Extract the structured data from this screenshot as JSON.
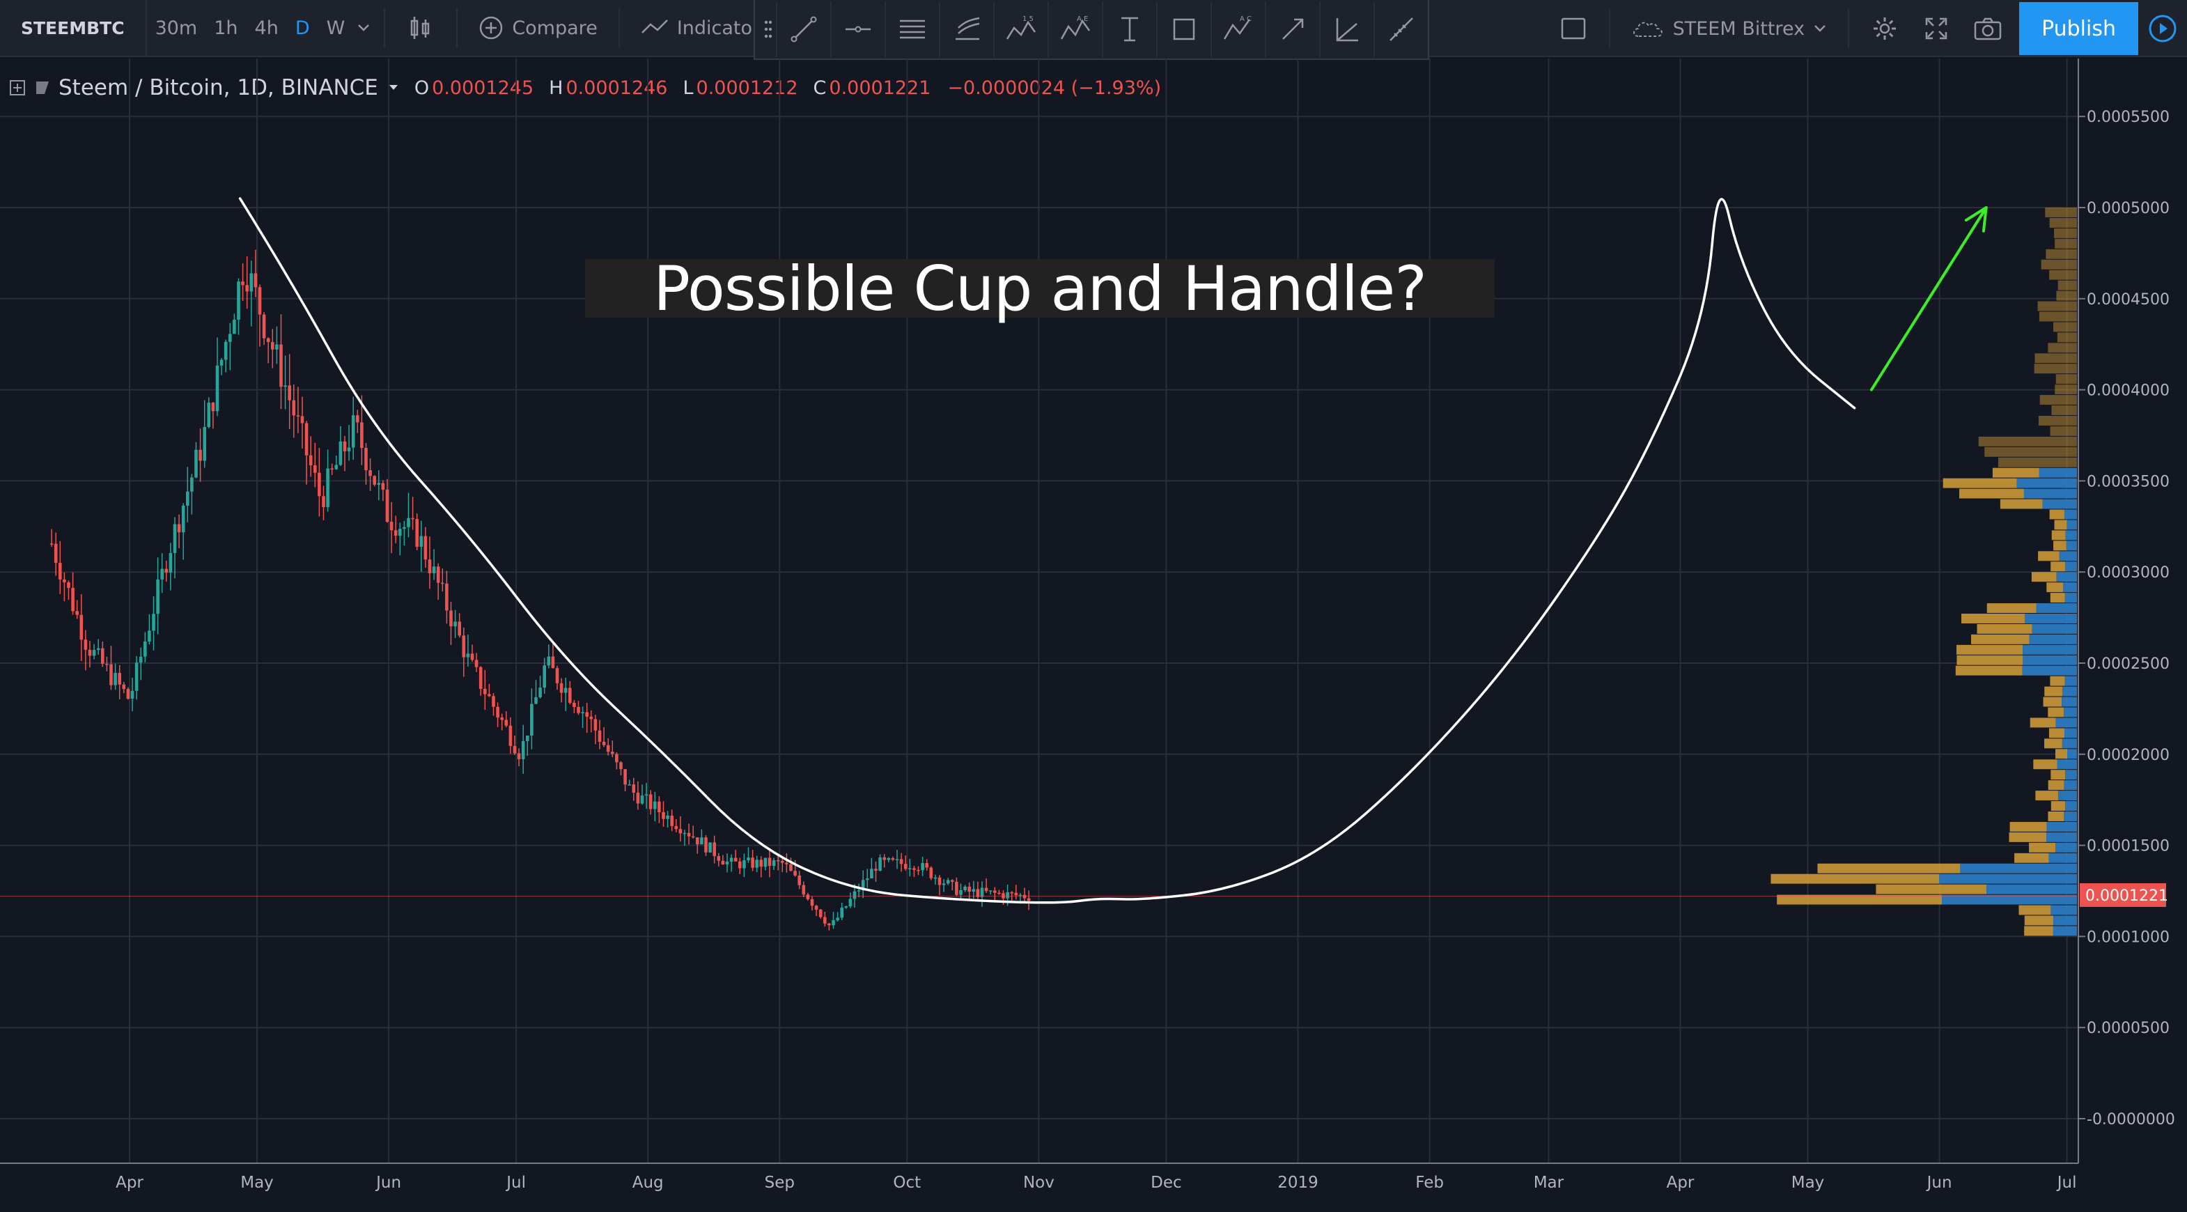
{
  "toolbar": {
    "symbol": "STEEMBTC",
    "intervals": [
      "30m",
      "1h",
      "4h",
      "D",
      "W"
    ],
    "active_interval": "D",
    "compare_label": "Compare",
    "indicators_label": "Indicators",
    "watchlist_label": "STEEM Bittrex",
    "publish_label": "Publish"
  },
  "legend": {
    "title": "Steem / Bitcoin, 1D, BINANCE",
    "o_label": "O",
    "o_value": "0.0001245",
    "h_label": "H",
    "h_value": "0.0001246",
    "l_label": "L",
    "l_value": "0.0001212",
    "c_label": "C",
    "c_value": "0.0001221",
    "change": "−0.0000024 (−1.93%)"
  },
  "annotation_title": "Possible Cup and Handle?",
  "colors": {
    "background": "#131722",
    "up": "#26a69a",
    "down": "#ef5350",
    "vp_up": "#2c7fc9",
    "vp_down": "#d6a037",
    "publish": "#2196f3",
    "arrow": "#3ded29",
    "drawing": "#ffffff"
  },
  "icons": [
    "bar-style-icon",
    "compare-plus-icon",
    "indicators-icon",
    "trendline-icon",
    "horizontal-ray-icon",
    "pitchfork-icon",
    "fib-retracement-icon",
    "xabcd-pattern-icon",
    "elliott-wave-icon",
    "text-icon",
    "rectangle-icon",
    "abcd-pattern-icon",
    "arrow-icon",
    "gann-icon",
    "measure-icon",
    "layout-icon",
    "cloud-icon",
    "gear-icon",
    "fullscreen-icon",
    "camera-icon",
    "play-icon"
  ],
  "chart_data": {
    "type": "candlestick",
    "y_axis": {
      "ticks": [
        "0.0005500",
        "0.0005000",
        "0.0004500",
        "0.0004000",
        "0.0003500",
        "0.0003000",
        "0.0002500",
        "0.0002000",
        "0.0001500",
        "0.0001000",
        "0.0000500",
        "-0.0000000"
      ],
      "current_price_label": "0.0001221",
      "current_price": 0.0001221
    },
    "x_axis": {
      "ticks": [
        "Apr",
        "May",
        "Jun",
        "Jul",
        "Aug",
        "Sep",
        "Oct",
        "Nov",
        "Dec",
        "2019",
        "Feb",
        "Mar",
        "Apr",
        "May",
        "Jun",
        "Jul"
      ]
    },
    "price_path": [
      [
        "2018-03-13",
        0.00032
      ],
      [
        "2018-03-22",
        0.00026
      ],
      [
        "2018-04-01",
        0.00023
      ],
      [
        "2018-04-10",
        0.00031
      ],
      [
        "2018-04-18",
        0.00037
      ],
      [
        "2018-04-28",
        0.00047
      ],
      [
        "2018-05-08",
        0.0004
      ],
      [
        "2018-05-16",
        0.00034
      ],
      [
        "2018-05-24",
        0.00038
      ],
      [
        "2018-06-01",
        0.00033
      ],
      [
        "2018-06-08",
        0.00032
      ],
      [
        "2018-06-20",
        0.00025
      ],
      [
        "2018-07-02",
        0.0002
      ],
      [
        "2018-07-08",
        0.00025
      ],
      [
        "2018-07-18",
        0.00022
      ],
      [
        "2018-07-28",
        0.00018
      ],
      [
        "2018-08-09",
        0.00016
      ],
      [
        "2018-08-20",
        0.00014
      ],
      [
        "2018-09-02",
        0.00014
      ],
      [
        "2018-09-13",
        0.000105
      ],
      [
        "2018-09-24",
        0.00014
      ],
      [
        "2018-10-03",
        0.00014
      ],
      [
        "2018-10-13",
        0.000125
      ],
      [
        "2018-10-30",
        0.000122
      ]
    ],
    "cup_drawing": [
      [
        "2018-04-27",
        0.000505
      ],
      [
        "2018-05-09",
        0.00046
      ],
      [
        "2018-05-28",
        0.00038
      ],
      [
        "2018-06-20",
        0.00032
      ],
      [
        "2018-07-13",
        0.00025
      ],
      [
        "2018-08-05",
        0.0002
      ],
      [
        "2018-08-26",
        0.00015
      ],
      [
        "2018-09-18",
        0.000125
      ],
      [
        "2018-10-13",
        0.00012
      ],
      [
        "2018-11-06",
        0.000118
      ],
      [
        "2018-11-15",
        0.000121
      ],
      [
        "2018-11-25",
        0.00012
      ],
      [
        "2018-12-15",
        0.000125
      ],
      [
        "2019-01-06",
        0.000145
      ],
      [
        "2019-01-28",
        0.00019
      ],
      [
        "2019-02-20",
        0.00025
      ],
      [
        "2019-03-13",
        0.00032
      ],
      [
        "2019-03-25",
        0.00037
      ],
      [
        "2019-04-07",
        0.00044
      ],
      [
        "2019-04-10",
        0.00052
      ],
      [
        "2019-04-15",
        0.00047
      ],
      [
        "2019-04-26",
        0.00042
      ],
      [
        "2019-05-12",
        0.00039
      ]
    ],
    "arrow": {
      "from": [
        "2019-05-16",
        0.0004
      ],
      "to": [
        "2019-06-12",
        0.0005
      ]
    },
    "volume_profile_range": [
      0.0001,
      0.0005
    ]
  }
}
